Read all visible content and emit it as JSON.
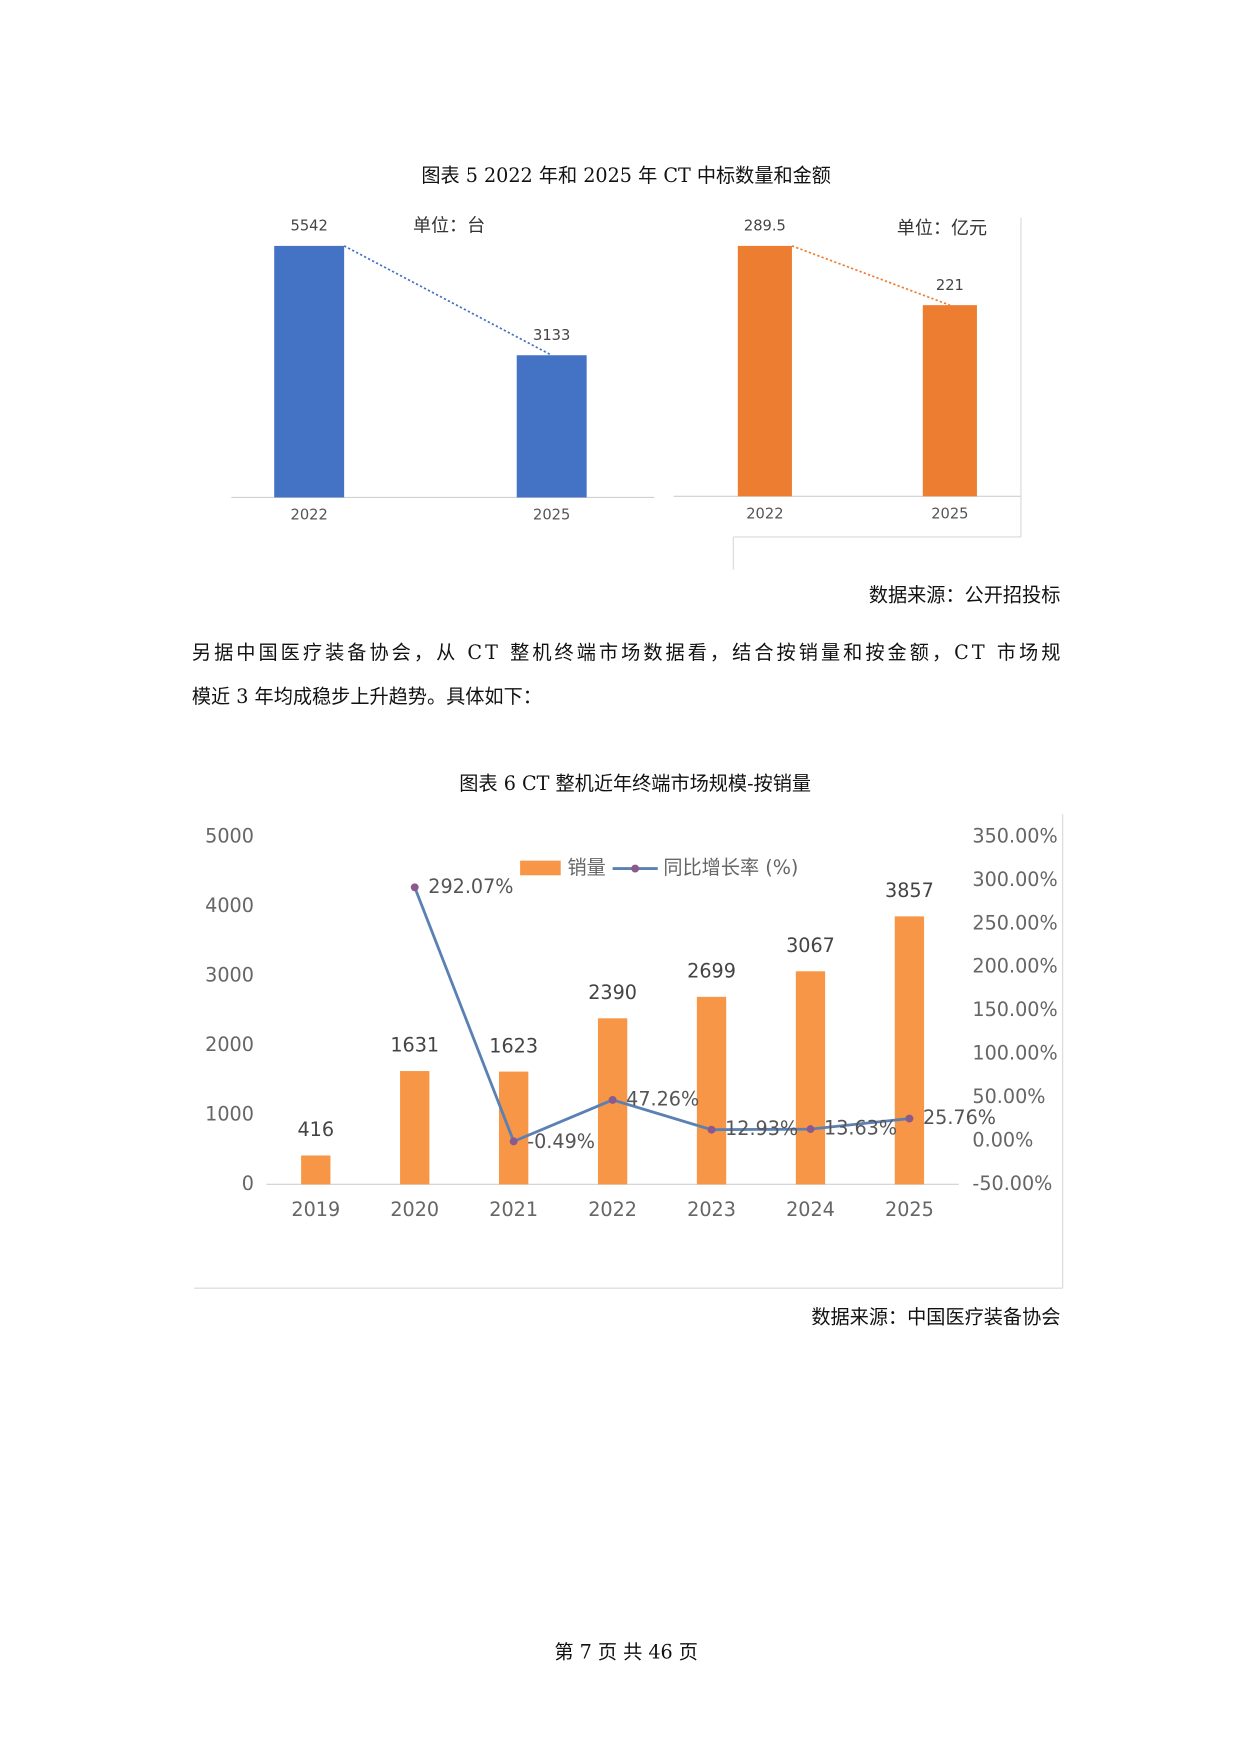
{
  "document": {
    "figure5_caption": "图表 5 2022 年和 2025 年 CT 中标数量和金额",
    "figure5_source": "数据来源：公开招投标",
    "paragraph": [
      "另据中国医疗装备协会，从 CT 整机终端市场数据看，结合按销量和按金额，CT 市场规",
      "模近 3 年均成稳步上升趋势。具体如下："
    ],
    "figure6_caption": "图表 6 CT 整机近年终端市场规模-按销量",
    "figure6_source": "数据来源：中国医疗装备协会",
    "footer": "第 7 页 共 46 页"
  },
  "chart_data": [
    {
      "type": "bar",
      "annotation": "单位：台",
      "categories": [
        "2022",
        "2025"
      ],
      "values": [
        5542,
        3133
      ],
      "color": "#4472c4",
      "trend_line": true
    },
    {
      "type": "bar",
      "annotation": "单位：亿元",
      "categories": [
        "2022",
        "2025"
      ],
      "values": [
        289.5,
        221
      ],
      "color": "#ed7d31",
      "trend_line": true
    },
    {
      "type": "bar",
      "categories": [
        "2019",
        "2020",
        "2021",
        "2022",
        "2023",
        "2024",
        "2025"
      ],
      "series": [
        {
          "name": "销量",
          "type": "bar",
          "color": "#f79646",
          "values": [
            416,
            1631,
            1623,
            2390,
            2699,
            3067,
            3857
          ]
        },
        {
          "name": "同比增长率 (%)",
          "type": "line",
          "axis": "y2",
          "color": "#5b80b2",
          "marker_color": "#8a5a8c",
          "values": [
            null,
            292.07,
            -0.49,
            47.26,
            12.93,
            13.63,
            25.76
          ],
          "value_labels": [
            null,
            "292.07%",
            "-0.49%",
            "47.26%",
            "12.93%",
            "13.63%",
            "25.76%"
          ]
        }
      ],
      "ylim": [
        0,
        5000
      ],
      "yticks": [
        0,
        1000,
        2000,
        3000,
        4000,
        5000
      ],
      "y2lim": [
        -50,
        350
      ],
      "y2ticks": [
        {
          "value": -50,
          "label": "-50.00%"
        },
        {
          "value": 0,
          "label": "0.00%"
        },
        {
          "value": 50,
          "label": "50.00%"
        },
        {
          "value": 100,
          "label": "100.00%"
        },
        {
          "value": 150,
          "label": "150.00%"
        },
        {
          "value": 200,
          "label": "200.00%"
        },
        {
          "value": 250,
          "label": "250.00%"
        },
        {
          "value": 300,
          "label": "300.00%"
        },
        {
          "value": 350,
          "label": "350.00%"
        }
      ],
      "legend": "top"
    }
  ]
}
